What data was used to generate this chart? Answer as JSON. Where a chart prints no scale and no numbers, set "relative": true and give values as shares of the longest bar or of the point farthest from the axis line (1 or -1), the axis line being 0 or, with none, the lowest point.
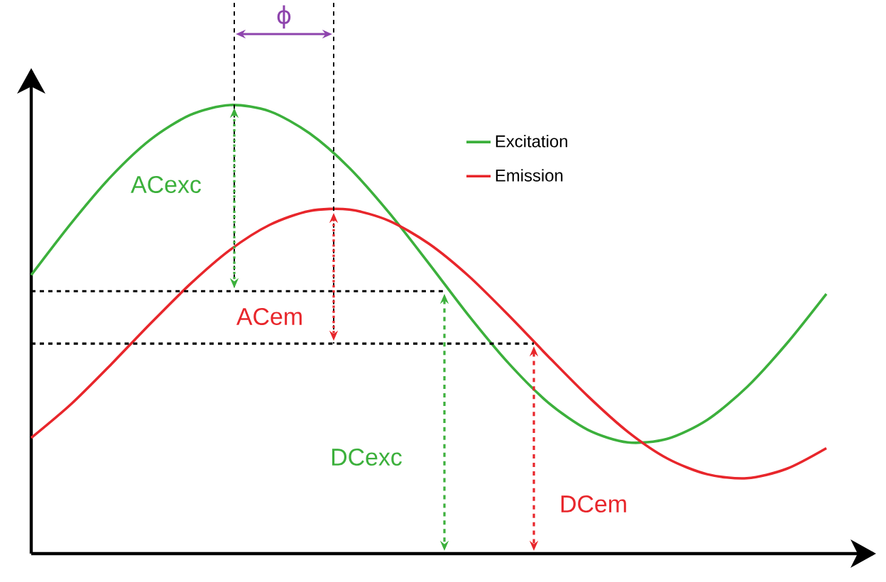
{
  "chart_data": {
    "type": "line",
    "relative": true,
    "legend": "top right",
    "marker": "none",
    "line_style": "solid",
    "categories": [
      null,
      null,
      null,
      null,
      null,
      null,
      null,
      null,
      null,
      null,
      null,
      null,
      null,
      null,
      null,
      null,
      null,
      null,
      null,
      null,
      null
    ],
    "series": [
      {
        "name": "Excitation",
        "color": "#3cb03c",
        "values": [
          0.621,
          0.736,
          0.84,
          0.923,
          0.978,
          1.0,
          0.986,
          0.937,
          0.86,
          0.76,
          0.647,
          0.531,
          0.425,
          0.337,
          0.276,
          0.248,
          0.256,
          0.298,
          0.371,
          0.468,
          0.579
        ]
      },
      {
        "name": "Emission",
        "color": "#e8262b",
        "values": [
          0.258,
          0.333,
          0.421,
          0.513,
          0.601,
          0.677,
          0.733,
          0.764,
          0.767,
          0.742,
          0.691,
          0.619,
          0.532,
          0.44,
          0.351,
          0.272,
          0.212,
          0.177,
          0.168,
          0.189,
          0.235
        ]
      }
    ],
    "ref_lines": [
      {
        "axis": "y",
        "value": 0.585,
        "color": "#000000",
        "line_style": "dashed"
      },
      {
        "axis": "y",
        "value": 0.468,
        "color": "#000000",
        "line_style": "dashed"
      }
    ],
    "annotations": [
      "ϕ",
      "ACexc",
      "ACem",
      "DCexc",
      "DCem"
    ]
  }
}
